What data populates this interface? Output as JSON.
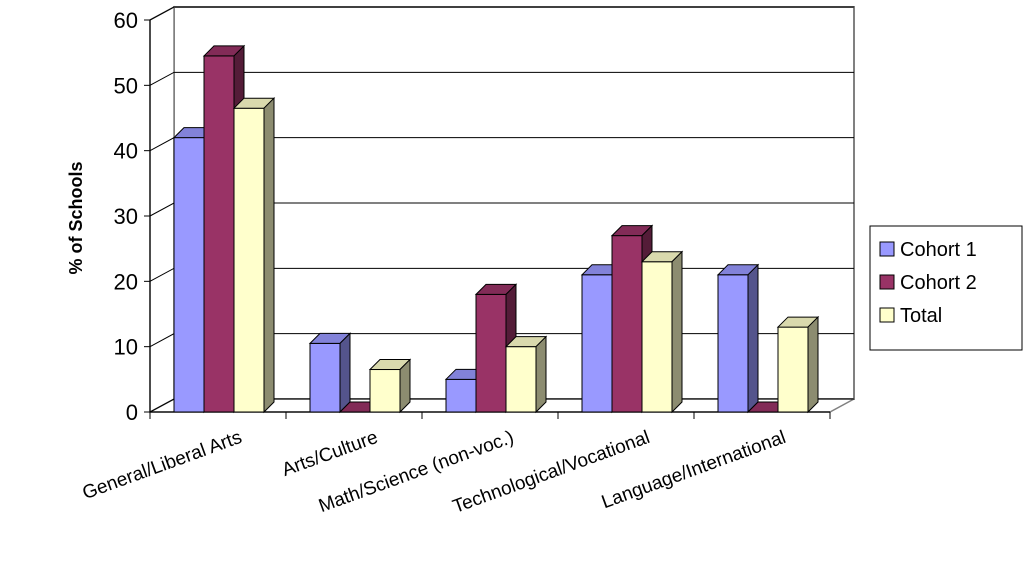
{
  "chart_data": {
    "type": "bar",
    "title": "",
    "xlabel": "",
    "ylabel": "% of Schools",
    "ylim": [
      0,
      60
    ],
    "yticks": [
      0,
      10,
      20,
      30,
      40,
      50,
      60
    ],
    "grid": true,
    "legend_position": "right",
    "categories": [
      "General/Liberal Arts",
      "Arts/Culture",
      "Math/Science (non-voc.)",
      "Technological/Vocational",
      "Language/International"
    ],
    "series": [
      {
        "name": "Cohort 1",
        "color": "#9999ff",
        "values": [
          42,
          10.5,
          5,
          21,
          21
        ]
      },
      {
        "name": "Cohort 2",
        "color": "#993366",
        "values": [
          54.5,
          0,
          18,
          27,
          0
        ]
      },
      {
        "name": "Total",
        "color": "#ffffcc",
        "values": [
          46.5,
          6.5,
          10,
          23,
          13
        ]
      }
    ]
  }
}
